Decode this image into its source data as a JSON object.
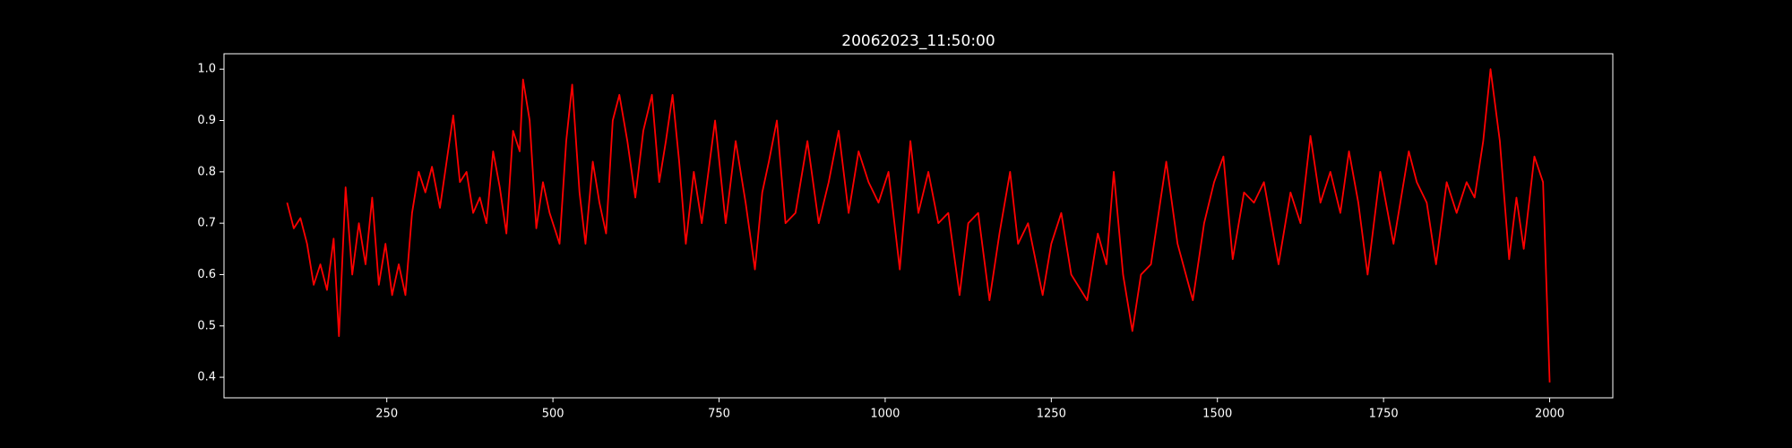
{
  "chart_data": {
    "type": "line",
    "title": "20062023_11:50:00",
    "x": [
      100,
      110,
      120,
      130,
      140,
      150,
      160,
      170,
      178,
      188,
      198,
      208,
      218,
      228,
      238,
      248,
      258,
      268,
      278,
      288,
      298,
      308,
      318,
      330,
      340,
      350,
      360,
      370,
      380,
      390,
      400,
      410,
      420,
      430,
      440,
      450,
      455,
      465,
      475,
      485,
      495,
      510,
      520,
      529,
      540,
      549,
      560,
      570,
      580,
      590,
      600,
      612,
      624,
      636,
      649,
      660,
      670,
      680,
      690,
      700,
      712,
      724,
      744,
      760,
      775,
      790,
      804,
      815,
      825,
      837,
      850,
      865,
      883,
      900,
      915,
      930,
      945,
      960,
      975,
      990,
      1005,
      1022,
      1038,
      1050,
      1065,
      1080,
      1095,
      1112,
      1125,
      1140,
      1157,
      1172,
      1188,
      1200,
      1215,
      1237,
      1250,
      1265,
      1280,
      1304,
      1320,
      1333,
      1344,
      1358,
      1372,
      1385,
      1400,
      1423,
      1440,
      1463,
      1480,
      1495,
      1509,
      1523,
      1540,
      1555,
      1570,
      1592,
      1610,
      1625,
      1640,
      1655,
      1670,
      1685,
      1698,
      1712,
      1726,
      1745,
      1765,
      1788,
      1800,
      1815,
      1829,
      1845,
      1860,
      1875,
      1887,
      1900,
      1911,
      1925,
      1939,
      1950,
      1961,
      1977,
      1990,
      2000
    ],
    "series": [
      {
        "color": "#ff0000",
        "values": [
          0.74,
          0.69,
          0.71,
          0.66,
          0.58,
          0.62,
          0.57,
          0.67,
          0.48,
          0.77,
          0.6,
          0.7,
          0.62,
          0.75,
          0.58,
          0.66,
          0.56,
          0.62,
          0.56,
          0.72,
          0.8,
          0.76,
          0.81,
          0.73,
          0.82,
          0.91,
          0.78,
          0.8,
          0.72,
          0.75,
          0.7,
          0.84,
          0.77,
          0.68,
          0.88,
          0.84,
          0.98,
          0.9,
          0.69,
          0.78,
          0.72,
          0.66,
          0.86,
          0.97,
          0.76,
          0.66,
          0.82,
          0.74,
          0.68,
          0.9,
          0.95,
          0.86,
          0.75,
          0.88,
          0.95,
          0.78,
          0.86,
          0.95,
          0.82,
          0.66,
          0.8,
          0.7,
          0.9,
          0.7,
          0.86,
          0.74,
          0.61,
          0.76,
          0.82,
          0.9,
          0.7,
          0.72,
          0.86,
          0.7,
          0.78,
          0.88,
          0.72,
          0.84,
          0.78,
          0.74,
          0.8,
          0.61,
          0.86,
          0.72,
          0.8,
          0.7,
          0.72,
          0.56,
          0.7,
          0.72,
          0.55,
          0.68,
          0.8,
          0.66,
          0.7,
          0.56,
          0.66,
          0.72,
          0.6,
          0.55,
          0.68,
          0.62,
          0.8,
          0.6,
          0.49,
          0.6,
          0.62,
          0.82,
          0.66,
          0.55,
          0.7,
          0.78,
          0.83,
          0.63,
          0.76,
          0.74,
          0.78,
          0.62,
          0.76,
          0.7,
          0.87,
          0.74,
          0.8,
          0.72,
          0.84,
          0.74,
          0.6,
          0.8,
          0.66,
          0.84,
          0.78,
          0.74,
          0.62,
          0.78,
          0.72,
          0.78,
          0.75,
          0.86,
          1.0,
          0.86,
          0.63,
          0.75,
          0.65,
          0.83,
          0.78,
          0.39
        ]
      }
    ],
    "xlim": [
      5,
      2095
    ],
    "ylim": [
      0.36,
      1.03
    ],
    "xticks": [
      250,
      500,
      750,
      1000,
      1250,
      1500,
      1750,
      2000
    ],
    "yticks": [
      0.4,
      0.5,
      0.6,
      0.7,
      0.8,
      0.9,
      {
        "value": 1,
        "label": "1.0"
      }
    ]
  }
}
